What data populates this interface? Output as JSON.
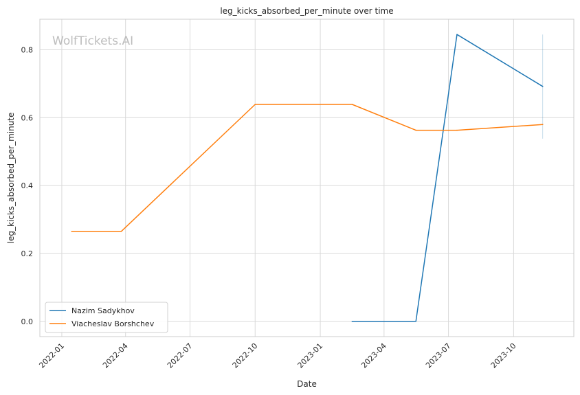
{
  "chart_data": {
    "type": "line",
    "title": "leg_kicks_absorbed_per_minute over time",
    "xlabel": "Date",
    "ylabel": "leg_kicks_absorbed_per_minute",
    "watermark": "WolfTickets.AI",
    "xlim": [
      "2021-12-01",
      "2023-12-25"
    ],
    "ylim": [
      -0.045,
      0.89
    ],
    "x_ticks": [
      "2022-01",
      "2022-04",
      "2022-07",
      "2022-10",
      "2023-01",
      "2023-04",
      "2023-07",
      "2023-10"
    ],
    "y_ticks": [
      0.0,
      0.2,
      0.4,
      0.6,
      0.8
    ],
    "y_tick_labels": [
      "0.0",
      "0.2",
      "0.4",
      "0.6",
      "0.8"
    ],
    "grid": true,
    "legend_position": "lower-left",
    "series": [
      {
        "name": "Nazim Sadykhov",
        "color": "#1f77b4",
        "points": [
          {
            "x": "2023-02-15",
            "y": 0.0
          },
          {
            "x": "2023-05-16",
            "y": 0.0
          },
          {
            "x": "2023-07-13",
            "y": 0.845
          },
          {
            "x": "2023-11-11",
            "y": 0.692
          }
        ],
        "error_bar": {
          "x": "2023-11-11",
          "low": 0.538,
          "high": 0.845
        }
      },
      {
        "name": "Viacheslav Borshchev",
        "color": "#ff7f0e",
        "points": [
          {
            "x": "2022-01-15",
            "y": 0.265
          },
          {
            "x": "2022-03-26",
            "y": 0.265
          },
          {
            "x": "2022-10-01",
            "y": 0.639
          },
          {
            "x": "2023-02-15",
            "y": 0.639
          },
          {
            "x": "2023-05-16",
            "y": 0.563
          },
          {
            "x": "2023-07-13",
            "y": 0.563
          },
          {
            "x": "2023-11-11",
            "y": 0.58
          }
        ]
      }
    ]
  }
}
